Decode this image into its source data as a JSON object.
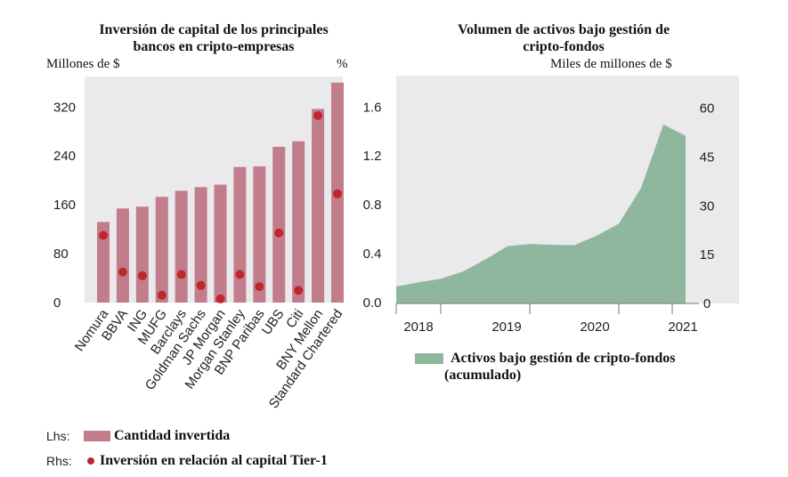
{
  "chart_data": [
    {
      "type": "bar",
      "title": "Inversión de capital de los principales bancos en cripto-empresas",
      "title_lines": [
        "Inversión de capital de los principales",
        "bancos en cripto-empresas"
      ],
      "ylabel_left": "Millones de $",
      "ylabel_right": "%",
      "left_ticks": [
        "0",
        "80",
        "160",
        "240",
        "320"
      ],
      "right_ticks": [
        "0.0",
        "0.4",
        "0.8",
        "1.2",
        "1.6"
      ],
      "ylim_left": [
        0,
        370
      ],
      "ylim_right": [
        0,
        1.85
      ],
      "categories": [
        "Nomura",
        "BBVA",
        "ING",
        "MUFG",
        "Barclays",
        "Goldman Sachs",
        "JP Morgan",
        "Morgan Stanley",
        "BNP Paribas",
        "UBS",
        "Citi",
        "BNY Mellon",
        "Standard Chartered"
      ],
      "series": [
        {
          "name": "Cantidad invertida",
          "axis": "left",
          "type": "bar",
          "color": "#c27d8c",
          "values": [
            132,
            154,
            157,
            173,
            183,
            189,
            193,
            222,
            223,
            255,
            264,
            317,
            360
          ]
        },
        {
          "name": "Inversión en relación al capital Tier-1",
          "axis": "right",
          "type": "dot",
          "color": "#c0262a",
          "values": [
            0.55,
            0.25,
            0.22,
            0.06,
            0.23,
            0.14,
            0.03,
            0.23,
            0.13,
            0.57,
            0.1,
            1.53,
            0.89
          ]
        }
      ],
      "legend": {
        "lhs_key": "Lhs:",
        "lhs_label": "Cantidad invertida",
        "rhs_key": "Rhs:",
        "rhs_label": "Inversión en relación al capital Tier-1"
      },
      "grid": false
    },
    {
      "type": "area",
      "title": "Volumen de activos bajo gestión de cripto-fondos",
      "title_lines": [
        "Volumen de activos bajo gestión de",
        "cripto-fondos"
      ],
      "ylabel": "Miles de millones de $",
      "y_ticks": [
        "0",
        "15",
        "30",
        "45",
        "60"
      ],
      "ylim": [
        0,
        70
      ],
      "x_ticks": [
        "2018",
        "2019",
        "2020",
        "2021"
      ],
      "x_range": [
        2018.0,
        2021.3
      ],
      "x": [
        2018.0,
        2018.25,
        2018.5,
        2018.75,
        2019.0,
        2019.25,
        2019.5,
        2019.75,
        2020.0,
        2020.25,
        2020.5,
        2020.75,
        2021.0,
        2021.25
      ],
      "values": [
        5.2,
        6.5,
        7.6,
        9.8,
        13.5,
        17.6,
        18.3,
        18.0,
        17.9,
        20.8,
        24.5,
        35.5,
        55.0,
        51.5
      ],
      "series_name": "Activos bajo gestión de cripto-fondos (acumulado)",
      "legend_lines": [
        "Activos bajo gestión de cripto-fondos",
        "(acumulado)"
      ],
      "color": "#8fb79e",
      "background": "#eaeaec",
      "grid": false
    }
  ]
}
